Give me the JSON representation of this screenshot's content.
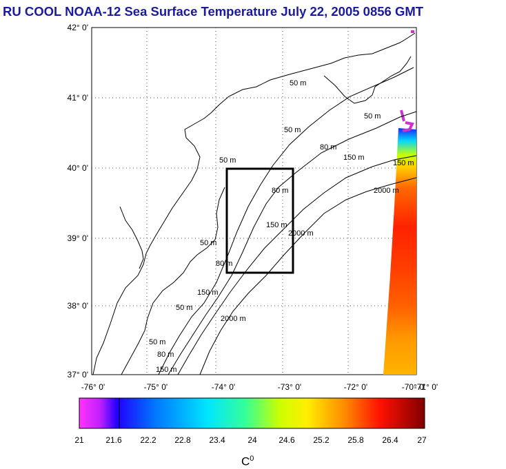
{
  "title": "RU COOL  NOAA-12 Sea Surface Temperature July 22, 2005 0856 GMT",
  "lat_ticks": [
    "42° 0'",
    "41° 0'",
    "40° 0'",
    "39° 0'",
    "38° 0'",
    "37° 0'"
  ],
  "lon_ticks": [
    "-76° 0'",
    "-75° 0'",
    "-74° 0'",
    "-73° 0'",
    "-72° 0'",
    "-71° 0'",
    "-70° 0'"
  ],
  "contour_labels": [
    "50 m",
    "50 m",
    "50 m",
    "50 m",
    "50 m",
    "50 m",
    "50 m",
    "80 m",
    "80 m",
    "80 m",
    "80 m",
    "150 m",
    "150 m",
    "150 m",
    "150 m",
    "150 m",
    "2000 m",
    "2000 m",
    "2000 m"
  ],
  "colorbar": {
    "ticks": [
      "21",
      "21.6",
      "22.2",
      "22.8",
      "23.4",
      "24",
      "24.6",
      "25.2",
      "25.8",
      "26.4",
      "27"
    ],
    "unit": "C",
    "unit_sup": "0",
    "colors": [
      "#ff33ff",
      "#b01fff",
      "#0000ff",
      "#0077ff",
      "#00e5ff",
      "#33ff99",
      "#c8ff00",
      "#ffee00",
      "#ff7700",
      "#ff0000",
      "#8a0000"
    ]
  }
}
